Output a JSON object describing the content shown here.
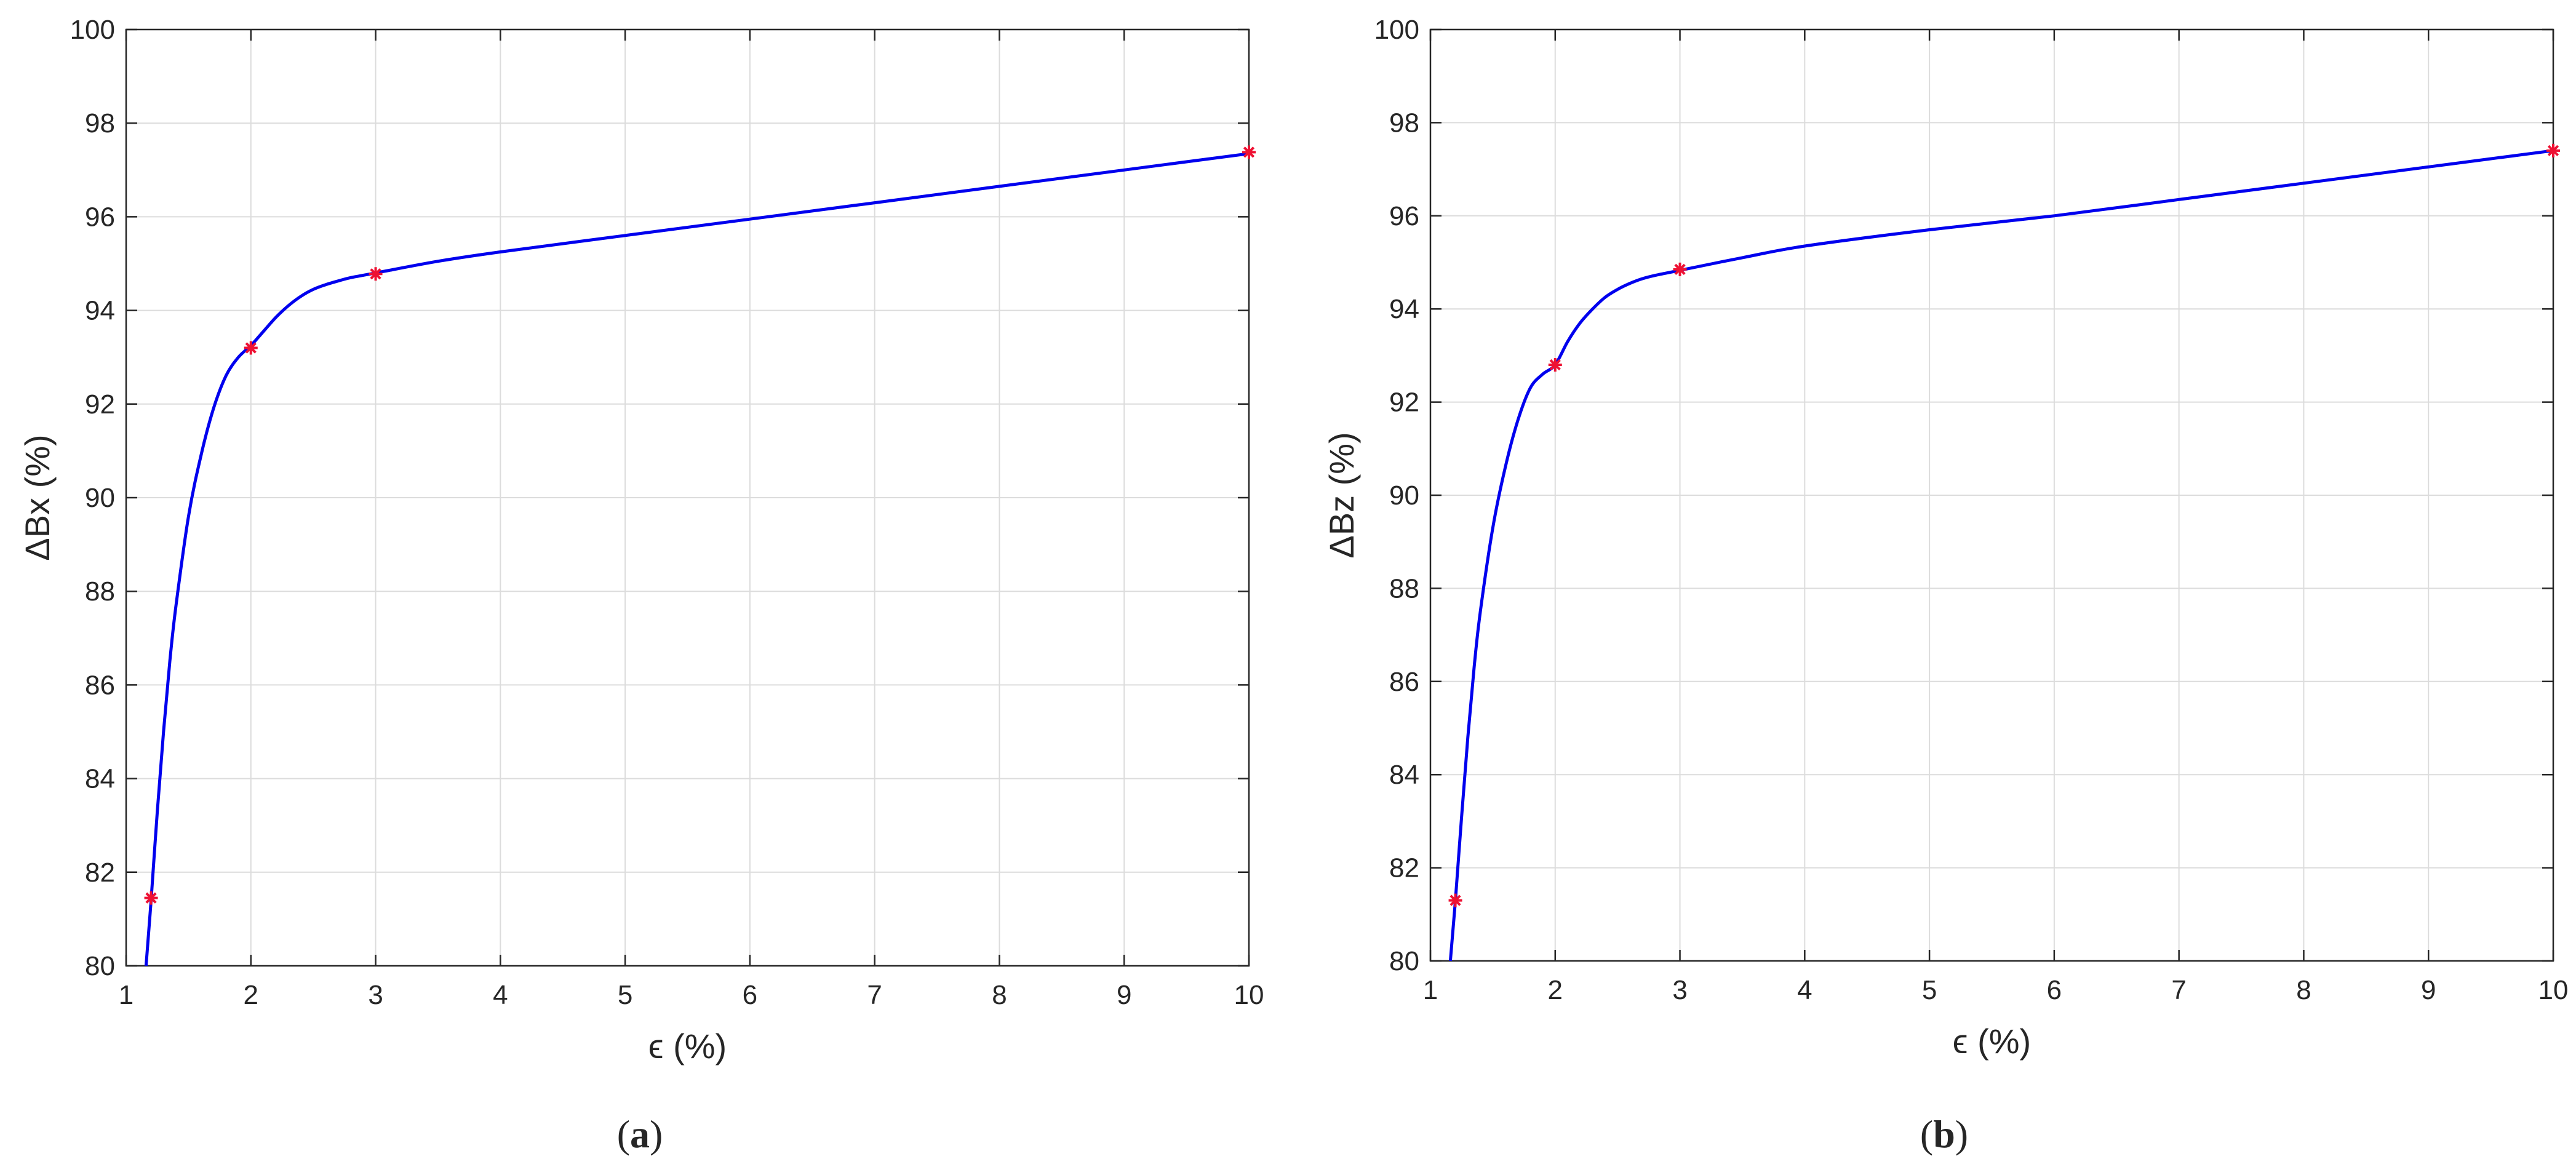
{
  "figure": {
    "panels": [
      {
        "caption_open": "(",
        "caption_letter": "a",
        "caption_close": ")"
      },
      {
        "caption_open": "(",
        "caption_letter": "b",
        "caption_close": ")"
      }
    ]
  },
  "colors": {
    "curve": "#0000ee",
    "marker": "#ee1133",
    "grid": "#dcdcdc",
    "axis": "#262626",
    "background": "#ffffff"
  },
  "chart_data": [
    {
      "type": "line",
      "title": "",
      "xlabel": "ϵ (%)",
      "ylabel": "ΔBx (%)",
      "xlim": [
        1,
        10
      ],
      "ylim": [
        80,
        100
      ],
      "xticks": [
        1,
        2,
        3,
        4,
        5,
        6,
        7,
        8,
        9,
        10
      ],
      "yticks": [
        80,
        82,
        84,
        86,
        88,
        90,
        92,
        94,
        96,
        98,
        100
      ],
      "grid": true,
      "series": [
        {
          "kind": "line",
          "x": [
            1.16,
            1.2,
            1.25,
            1.3,
            1.35,
            1.4,
            1.5,
            1.6,
            1.7,
            1.8,
            1.9,
            2.0,
            2.1,
            2.2,
            2.3,
            2.4,
            2.5,
            2.6,
            2.7,
            2.8,
            3.0,
            3.5,
            4.0,
            5.0,
            6.0,
            7.0,
            8.0,
            9.0,
            10.0
          ],
          "y": [
            80.0,
            81.4,
            83.3,
            85.0,
            86.5,
            87.7,
            89.6,
            90.9,
            91.9,
            92.6,
            93.0,
            93.25,
            93.55,
            93.85,
            94.1,
            94.3,
            94.45,
            94.55,
            94.63,
            94.7,
            94.8,
            95.05,
            95.25,
            95.6,
            95.95,
            96.3,
            96.65,
            97.0,
            97.35
          ]
        },
        {
          "kind": "markers",
          "x": [
            1.2,
            2,
            3,
            10
          ],
          "y": [
            81.45,
            93.2,
            94.78,
            97.38
          ]
        }
      ]
    },
    {
      "type": "line",
      "title": "",
      "xlabel": "ϵ (%)",
      "ylabel": "ΔBz (%)",
      "xlim": [
        1,
        10
      ],
      "ylim": [
        80,
        100
      ],
      "xticks": [
        1,
        2,
        3,
        4,
        5,
        6,
        7,
        8,
        9,
        10
      ],
      "yticks": [
        80,
        82,
        84,
        86,
        88,
        90,
        92,
        94,
        96,
        98,
        100
      ],
      "grid": true,
      "series": [
        {
          "kind": "line",
          "x": [
            1.16,
            1.2,
            1.25,
            1.3,
            1.35,
            1.4,
            1.5,
            1.6,
            1.7,
            1.8,
            1.9,
            2.0,
            2.1,
            2.2,
            2.3,
            2.4,
            2.5,
            2.6,
            2.7,
            2.8,
            3.0,
            3.5,
            4.0,
            5.0,
            6.0,
            7.0,
            8.0,
            9.0,
            10.0
          ],
          "y": [
            80.0,
            81.3,
            83.1,
            84.8,
            86.3,
            87.5,
            89.3,
            90.6,
            91.6,
            92.3,
            92.6,
            92.8,
            93.3,
            93.7,
            94.0,
            94.25,
            94.42,
            94.55,
            94.65,
            94.72,
            94.83,
            95.1,
            95.35,
            95.7,
            96.0,
            96.35,
            96.7,
            97.05,
            97.4
          ]
        },
        {
          "kind": "markers",
          "x": [
            1.2,
            2,
            3,
            10
          ],
          "y": [
            81.3,
            92.8,
            94.85,
            97.4
          ]
        }
      ]
    }
  ]
}
